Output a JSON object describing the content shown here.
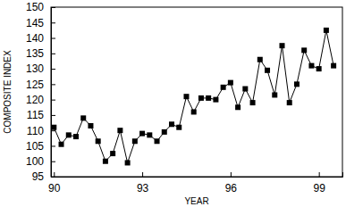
{
  "chart_data": {
    "type": "line",
    "x_label": "YEAR",
    "y_label": "COMPOSITE INDEX",
    "x": [
      90,
      90.25,
      90.5,
      90.75,
      91,
      91.25,
      91.5,
      91.75,
      92,
      92.25,
      92.5,
      92.75,
      93,
      93.25,
      93.5,
      93.75,
      94,
      94.25,
      94.5,
      94.75,
      95,
      95.25,
      95.5,
      95.75,
      96,
      96.25,
      96.5,
      96.75,
      97,
      97.25,
      97.5,
      97.75,
      98,
      98.25,
      98.5,
      98.75,
      99,
      99.25,
      99.5
    ],
    "series": [
      {
        "color": "#000000",
        "marker": "square",
        "line_style": "solid",
        "values": [
          111,
          105.5,
          108.5,
          108,
          114,
          111.5,
          106.5,
          100,
          102.5,
          110,
          99.5,
          106.5,
          109,
          108.5,
          106.5,
          109.5,
          112,
          111,
          121,
          116,
          120.5,
          120.5,
          120,
          124,
          125.5,
          117.5,
          123.5,
          119,
          133,
          129.5,
          121.5,
          137.5,
          119,
          125,
          136,
          131,
          130,
          142.5,
          131
        ]
      }
    ],
    "xlim": [
      89.9,
      99.8
    ],
    "xticks": [
      90,
      93,
      96,
      99
    ],
    "ylim": [
      95,
      150
    ],
    "yticks": [
      95,
      100,
      105,
      110,
      115,
      120,
      125,
      130,
      135,
      140,
      145,
      150
    ],
    "grid": false
  }
}
